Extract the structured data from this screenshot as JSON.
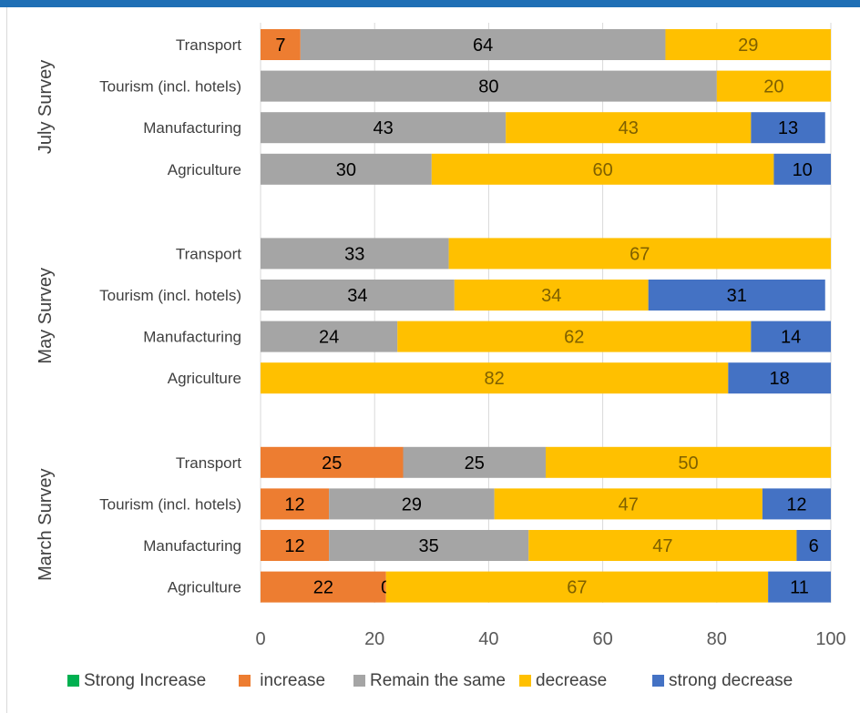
{
  "chart_data": {
    "type": "bar",
    "orientation": "horizontal",
    "stacked": true,
    "xlim": [
      0,
      100
    ],
    "xticks": [
      0,
      20,
      40,
      60,
      80,
      100
    ],
    "grid": "vertical",
    "legend_position": "bottom",
    "groups": [
      {
        "label": "July Survey",
        "rows": [
          {
            "category": "Transport",
            "values": [
              0,
              7,
              64,
              29,
              0
            ]
          },
          {
            "category": "Tourism (incl. hotels)",
            "values": [
              0,
              0,
              80,
              20,
              0
            ]
          },
          {
            "category": "Manufacturing",
            "values": [
              0,
              0,
              43,
              43,
              13
            ]
          },
          {
            "category": "Agriculture",
            "values": [
              0,
              0,
              30,
              60,
              10
            ]
          }
        ]
      },
      {
        "label": "May  Survey",
        "rows": [
          {
            "category": "Transport",
            "values": [
              0,
              0,
              33,
              67,
              0
            ]
          },
          {
            "category": "Tourism (incl. hotels)",
            "values": [
              0,
              0,
              34,
              34,
              31
            ]
          },
          {
            "category": "Manufacturing",
            "values": [
              0,
              0,
              24,
              62,
              14
            ]
          },
          {
            "category": "Agriculture",
            "values": [
              0,
              0,
              0,
              82,
              18
            ]
          }
        ]
      },
      {
        "label": "March Survey",
        "rows": [
          {
            "category": "Transport",
            "values": [
              0,
              25,
              25,
              50,
              0
            ]
          },
          {
            "category": "Tourism (incl. hotels)",
            "values": [
              0,
              12,
              29,
              47,
              12
            ]
          },
          {
            "category": "Manufacturing",
            "values": [
              0,
              12,
              35,
              47,
              6
            ]
          },
          {
            "category": "Agriculture",
            "values": [
              0,
              22,
              0,
              67,
              11
            ],
            "show_zero": [
              false,
              false,
              true,
              false,
              false
            ]
          }
        ]
      }
    ],
    "series": [
      {
        "name": "Strong Increase",
        "color": "#00b050"
      },
      {
        "name": " increase",
        "color": "#ed7d31"
      },
      {
        "name": "Remain the same",
        "color": "#a5a5a5"
      },
      {
        "name": "decrease",
        "color": "#ffc000"
      },
      {
        "name": "strong decrease",
        "color": "#4472c4"
      }
    ],
    "label_colors": {
      "Strong Increase": "#000000",
      " increase": "#000000",
      "Remain the same": "#000000",
      "decrease": "#7f6000",
      "strong decrease": "#000000"
    }
  }
}
